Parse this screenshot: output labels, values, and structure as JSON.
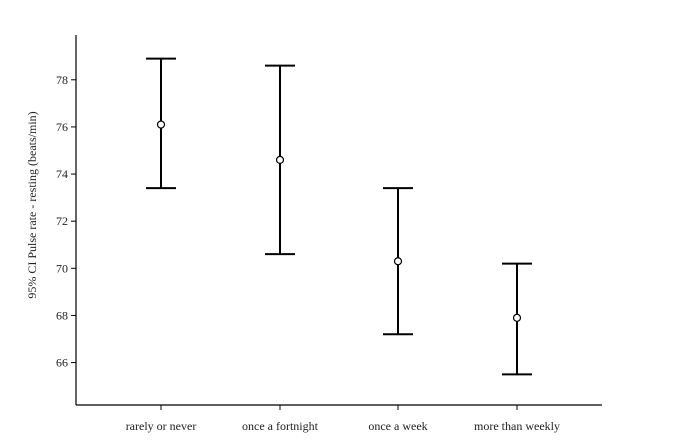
{
  "chart_data": {
    "type": "errorbar",
    "categories": [
      "rarely or never",
      "once a fortnight",
      "once a week",
      "more than weekly"
    ],
    "series": [
      {
        "means": [
          76.1,
          74.6,
          70.3,
          67.9
        ],
        "lower": [
          73.4,
          70.6,
          67.2,
          65.5
        ],
        "upper": [
          78.9,
          78.6,
          73.4,
          70.2
        ]
      }
    ],
    "xlabel": "",
    "ylabel": "95% CI Pulse rate - resting (beats/min)",
    "yticks": [
      66,
      68,
      70,
      72,
      74,
      76,
      78
    ],
    "ylim": [
      64.2,
      79.9
    ],
    "grid": false,
    "colors": {
      "bars": "#000000",
      "marker_fill": "#ffffff",
      "axes": "#000000",
      "background": "#ffffff"
    }
  }
}
